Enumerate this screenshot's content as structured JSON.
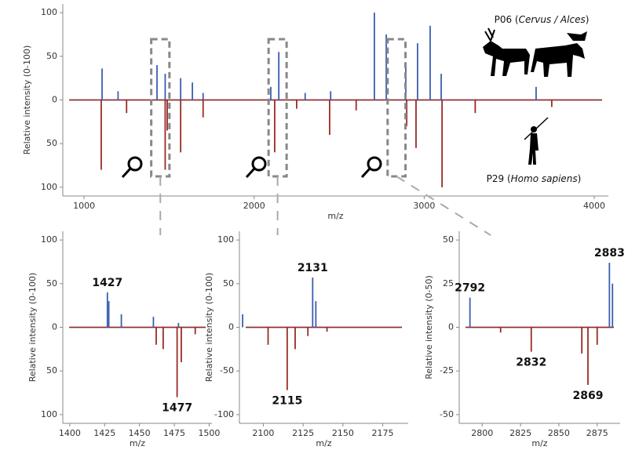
{
  "chart_data": [
    {
      "type": "mirror",
      "x_label": "m/z",
      "y_label": "Relative intensity (0-100)",
      "xlim": [
        875,
        4083
      ],
      "xticks": [
        1000,
        2000,
        3000,
        4000
      ],
      "ylim": [
        -110,
        110
      ],
      "yticks": [
        100,
        50,
        0,
        {
          "value": -50,
          "label": "50"
        },
        {
          "value": -100,
          "label": "100"
        }
      ],
      "top_label": [
        "P06 (",
        "Cervus / Alces",
        ")"
      ],
      "bottom_label": [
        "P29 (",
        "Homo sapiens",
        ")"
      ],
      "series": [
        {
          "color": "#3a5fb0",
          "x": [
            1106,
            1200,
            1429,
            1477,
            1568,
            1637,
            1700,
            2098,
            2145,
            2300,
            2450,
            2707,
            2777,
            2892,
            2961,
            3035,
            3100,
            3658
          ],
          "values": [
            36,
            10,
            40,
            30,
            25,
            20,
            8,
            15,
            55,
            8,
            10,
            100,
            75,
            40,
            65,
            85,
            30,
            15
          ]
        },
        {
          "color": "#9b2a24",
          "x": [
            1101,
            1250,
            1477,
            1489,
            1568,
            1700,
            2121,
            2250,
            2444,
            2600,
            2897,
            2952,
            3105,
            3300,
            3750
          ],
          "values": [
            -80,
            -15,
            -80,
            -35,
            -60,
            -20,
            -60,
            -10,
            -40,
            -12,
            -30,
            -55,
            -100,
            -15,
            -8
          ]
        }
      ]
    },
    {
      "type": "mirror",
      "x_label": "m/z",
      "y_label": "Relative intensity (0-100)",
      "xlim": [
        1395,
        1502
      ],
      "xticks": [
        1400,
        1425,
        1450,
        1475,
        1500
      ],
      "ylim": [
        -110,
        110
      ],
      "yticks": [
        100,
        50,
        0,
        {
          "value": -50,
          "label": "50"
        },
        {
          "value": -100,
          "label": "100"
        }
      ],
      "peak_labels": [
        1427,
        1477
      ],
      "series": [
        {
          "color": "#3a5fb0",
          "x": [
            1427,
            1428,
            1437,
            1460,
            1478
          ],
          "values": [
            40,
            30,
            15,
            12,
            5
          ]
        },
        {
          "color": "#9b2a24",
          "x": [
            1462,
            1467,
            1477,
            1480,
            1490
          ],
          "values": [
            -20,
            -25,
            -80,
            -40,
            -8
          ]
        }
      ]
    },
    {
      "type": "mirror",
      "x_label": "m/z",
      "y_label": "Relative intensity (0-100)",
      "xlim": [
        2085,
        2191
      ],
      "xticks": [
        2100,
        2125,
        2150,
        2175
      ],
      "ylim": [
        -110,
        110
      ],
      "yticks": [
        100,
        50,
        0,
        -50,
        -100
      ],
      "peak_labels": [
        2131,
        2115
      ],
      "series": [
        {
          "color": "#3a5fb0",
          "x": [
            2087,
            2131,
            2133
          ],
          "values": [
            15,
            57,
            30
          ]
        },
        {
          "color": "#9b2a24",
          "x": [
            2103,
            2115,
            2120,
            2128,
            2140
          ],
          "values": [
            -20,
            -72,
            -25,
            -10,
            -5
          ]
        }
      ]
    },
    {
      "type": "mirror",
      "x_label": "m/z",
      "y_label": "Relative intensity (0-50)",
      "xlim": [
        2785,
        2890
      ],
      "xticks": [
        2800,
        2825,
        2850,
        2875
      ],
      "ylim": [
        -55,
        55
      ],
      "yticks": [
        50,
        25,
        0,
        -25,
        -50
      ],
      "peak_labels": [
        2792,
        2832,
        2869,
        2883
      ],
      "series": [
        {
          "color": "#3a5fb0",
          "x": [
            2792,
            2883,
            2885
          ],
          "values": [
            17,
            37,
            25
          ]
        },
        {
          "color": "#9b2a24",
          "x": [
            2812,
            2832,
            2865,
            2869,
            2875
          ],
          "values": [
            -3,
            -14,
            -15,
            -33,
            -10
          ]
        }
      ]
    }
  ]
}
